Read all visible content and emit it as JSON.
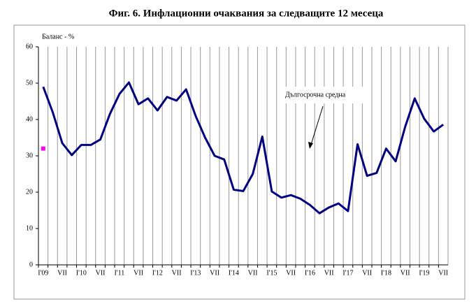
{
  "chart_data": {
    "type": "line",
    "title": "Фиг. 6. Инфлационни очаквания за следващите 12 месеца",
    "y_label": "Баланс - %",
    "categories": [
      "I'09",
      null,
      "VII",
      null,
      "I'10",
      null,
      "VII",
      null,
      "I'11",
      null,
      "VII",
      null,
      "I'12",
      null,
      "VII",
      null,
      "I'13",
      null,
      "VII",
      null,
      "I'14",
      null,
      "VII",
      null,
      "I'15",
      null,
      "VII",
      null,
      "I'16",
      null,
      "VII",
      null,
      "I'17",
      null,
      "VII",
      null,
      "I'18",
      null,
      "VII",
      null,
      "I'19",
      null,
      "VII"
    ],
    "series": [
      {
        "color": "#000080",
        "values": [
          49,
          42,
          33.5,
          30.2,
          33,
          33,
          34.5,
          41.5,
          47,
          50.2,
          44.2,
          45.8,
          42.5,
          46.2,
          45.2,
          48.3,
          41,
          35,
          30,
          29,
          20.7,
          20.3,
          25,
          35.3,
          20.2,
          18.5,
          19.2,
          18.2,
          16.5,
          14.2,
          15.8,
          16.9,
          14.8,
          33.2,
          24.5,
          25.3,
          32,
          28.5,
          38,
          45.8,
          40.2,
          36.7,
          38.6
        ]
      },
      {
        "name": "Дългосрочна средна",
        "color": "#ff00ff",
        "values": [
          32,
          null,
          null,
          null,
          null,
          null,
          null,
          null,
          null,
          null,
          null,
          null,
          null,
          null,
          null,
          null,
          null,
          null,
          null,
          null,
          null,
          null,
          null,
          null,
          null,
          null,
          null,
          null,
          null,
          null,
          null,
          null,
          null,
          null,
          null,
          null,
          null,
          null,
          null,
          null,
          null,
          null,
          null
        ]
      }
    ],
    "ylim": [
      0,
      60
    ],
    "yticks": [
      0,
      10,
      20,
      30,
      40,
      50,
      60
    ],
    "grid": true
  }
}
